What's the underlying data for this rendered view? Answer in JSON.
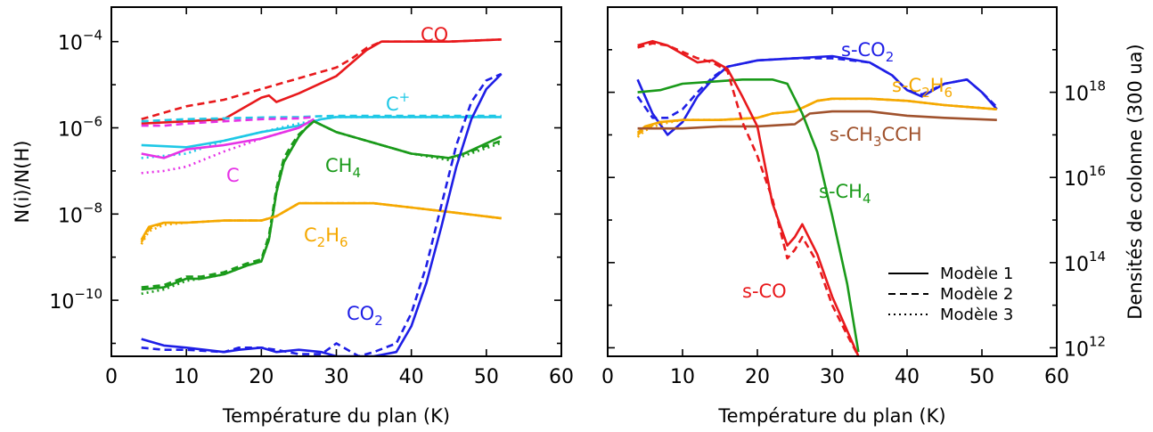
{
  "colors": {
    "CO": "#e8191c",
    "C+": "#1fc8e6",
    "CH4": "#1a9a1a",
    "C": "#e632e6",
    "C2H6": "#f5a800",
    "CO2": "#1e1ee6",
    "CH3CCH": "#a0522d"
  },
  "chart_data": [
    {
      "type": "line",
      "panel": "left",
      "xlabel": "Température du plan (K)",
      "ylabel": "N(i)/N(H)",
      "yscale": "log",
      "xlim": [
        0,
        60
      ],
      "ylim_exp": [
        -11.3,
        -3.2
      ],
      "x_ticks": [
        "0",
        "10",
        "20",
        "30",
        "40",
        "50",
        "60"
      ],
      "y_ticks": [
        {
          "base": "10",
          "exp": "−4",
          "value": -4
        },
        {
          "base": "10",
          "exp": "−6",
          "value": -6
        },
        {
          "base": "10",
          "exp": "−8",
          "value": -8
        },
        {
          "base": "10",
          "exp": "−10",
          "value": -10
        }
      ],
      "series": [
        {
          "name": "CO",
          "color_key": "CO",
          "label": {
            "main": "CO",
            "sub": "",
            "sup": ""
          },
          "x": [
            4,
            10,
            15,
            17,
            20,
            21,
            22,
            25,
            30,
            32,
            34,
            36,
            40,
            45,
            52
          ],
          "y": [
            -5.9,
            -5.85,
            -5.8,
            -5.6,
            -5.3,
            -5.25,
            -5.4,
            -5.2,
            -4.8,
            -4.5,
            -4.2,
            -4.0,
            -4.0,
            -4.0,
            -3.95
          ],
          "y2": [
            -5.8,
            -5.5,
            -5.35,
            -5.25,
            -5.1,
            -5.05,
            -5.0,
            -4.85,
            -4.6,
            -4.4,
            -4.15,
            -4.0,
            -4.0,
            -4.0,
            -3.95
          ],
          "y3": null
        },
        {
          "name": "C⁺",
          "color_key": "C+",
          "label": {
            "main": "C",
            "sub": "",
            "sup": "+"
          },
          "x": [
            4,
            10,
            15,
            20,
            25,
            28,
            30,
            35,
            40,
            45,
            52
          ],
          "y": [
            -6.4,
            -6.45,
            -6.3,
            -6.1,
            -5.95,
            -5.8,
            -5.75,
            -5.75,
            -5.75,
            -5.75,
            -5.75
          ],
          "y2": [
            -5.85,
            -5.8,
            -5.78,
            -5.76,
            -5.75,
            -5.73,
            -5.72,
            -5.72,
            -5.72,
            -5.72,
            -5.72
          ],
          "y3": [
            -6.7,
            -6.6,
            -6.3,
            -6.1,
            -5.9,
            -5.8,
            -5.75,
            -5.75,
            -5.75,
            -5.75,
            -5.75
          ]
        },
        {
          "name": "C",
          "color_key": "C",
          "label": {
            "main": "C",
            "sub": "",
            "sup": ""
          },
          "x": [
            4,
            7,
            10,
            15,
            20,
            25,
            27
          ],
          "y": [
            -6.6,
            -6.7,
            -6.5,
            -6.4,
            -6.25,
            -6.0,
            -5.8
          ],
          "y2": [
            -5.95,
            -5.95,
            -5.9,
            -5.85,
            -5.8,
            -5.78,
            -5.75
          ],
          "y3": [
            -7.05,
            -7.0,
            -6.9,
            -6.55,
            -6.25,
            -6.0,
            -5.8
          ]
        },
        {
          "name": "CH₄",
          "color_key": "CH4",
          "label": {
            "main": "CH",
            "sub": "4",
            "sup": ""
          },
          "x": [
            4,
            7,
            10,
            12,
            15,
            18,
            20,
            21,
            22,
            23,
            24,
            25,
            26,
            27,
            30,
            35,
            40,
            45,
            47,
            52
          ],
          "y": [
            -9.75,
            -9.7,
            -9.5,
            -9.5,
            -9.4,
            -9.2,
            -9.1,
            -8.6,
            -7.5,
            -6.8,
            -6.5,
            -6.2,
            -6.0,
            -5.85,
            -6.1,
            -6.35,
            -6.6,
            -6.7,
            -6.6,
            -6.2
          ],
          "y2": [
            -9.7,
            -9.65,
            -9.45,
            -9.45,
            -9.35,
            -9.15,
            -9.05,
            -8.5,
            -7.4,
            -6.7,
            -6.4,
            -6.15,
            -6.0,
            -5.85,
            -6.1,
            -6.35,
            -6.6,
            -6.7,
            -6.6,
            -6.3
          ],
          "y3": [
            -9.85,
            -9.75,
            -9.55,
            -9.5,
            -9.4,
            -9.2,
            -9.1,
            -8.6,
            -7.5,
            -6.8,
            -6.5,
            -6.2,
            -6.0,
            -5.85,
            -6.1,
            -6.35,
            -6.6,
            -6.75,
            -6.65,
            -6.35
          ]
        },
        {
          "name": "C₂H₆",
          "color_key": "C2H6",
          "label": {
            "main": "C",
            "sub": "2",
            "sup": "",
            "main2": "H",
            "sub2": "6"
          },
          "x": [
            4,
            5,
            7,
            10,
            15,
            20,
            22,
            25,
            30,
            35,
            40,
            45,
            52
          ],
          "y": [
            -8.6,
            -8.3,
            -8.2,
            -8.2,
            -8.15,
            -8.15,
            -8.05,
            -7.75,
            -7.75,
            -7.75,
            -7.85,
            -7.95,
            -8.1
          ],
          "y2": [
            -8.65,
            -8.35,
            -8.2,
            -8.2,
            -8.15,
            -8.15,
            -8.05,
            -7.75,
            -7.75,
            -7.75,
            -7.85,
            -7.95,
            -8.1
          ],
          "y3": [
            -8.7,
            -8.4,
            -8.25,
            -8.2,
            -8.15,
            -8.15,
            -8.05,
            -7.75,
            -7.75,
            -7.75,
            -7.85,
            -7.95,
            -8.1
          ]
        },
        {
          "name": "CO₂",
          "color_key": "CO2",
          "label": {
            "main": "CO",
            "sub": "2",
            "sup": ""
          },
          "x": [
            4,
            7,
            10,
            15,
            17,
            20,
            22,
            25,
            28,
            30,
            33,
            35,
            38,
            40,
            42,
            44,
            46,
            48,
            50,
            52
          ],
          "y": [
            -10.9,
            -11.05,
            -11.1,
            -11.2,
            -11.15,
            -11.1,
            -11.2,
            -11.15,
            -11.2,
            -11.3,
            -11.3,
            -11.3,
            -11.2,
            -10.6,
            -9.6,
            -8.3,
            -6.9,
            -5.8,
            -5.1,
            -4.75
          ],
          "y2": [
            -11.1,
            -11.15,
            -11.15,
            -11.2,
            -11.1,
            -11.1,
            -11.15,
            -11.25,
            -11.25,
            -11.0,
            -11.3,
            -11.2,
            -11.0,
            -10.3,
            -9.2,
            -7.8,
            -6.4,
            -5.4,
            -4.9,
            -4.75
          ],
          "y3": null
        }
      ]
    },
    {
      "type": "line",
      "panel": "right",
      "xlabel": "Température du plan (K)",
      "ylabel": "Densités de colonne (300 ua)",
      "yscale": "log",
      "xlim": [
        0,
        60
      ],
      "ylim_exp": [
        11.8,
        20.0
      ],
      "x_ticks": [
        "0",
        "10",
        "20",
        "30",
        "40",
        "50",
        "60"
      ],
      "y_ticks": [
        {
          "base": "10",
          "exp": "18",
          "value": 18
        },
        {
          "base": "10",
          "exp": "16",
          "value": 16
        },
        {
          "base": "10",
          "exp": "14",
          "value": 14
        },
        {
          "base": "10",
          "exp": "12",
          "value": 12
        }
      ],
      "series": [
        {
          "name": "s-CO₂",
          "color_key": "CO2",
          "label": {
            "main": "s-CO",
            "sub": "2",
            "sup": ""
          },
          "x": [
            4,
            6,
            8,
            10,
            12,
            14,
            16,
            20,
            25,
            30,
            35,
            38,
            40,
            42,
            45,
            48,
            50,
            52
          ],
          "y": [
            18.3,
            17.5,
            17.0,
            17.3,
            17.9,
            18.3,
            18.6,
            18.75,
            18.8,
            18.85,
            18.7,
            18.4,
            18.05,
            17.9,
            18.2,
            18.3,
            18.0,
            17.6
          ],
          "y2": [
            17.9,
            17.4,
            17.4,
            17.6,
            18.0,
            18.35,
            18.6,
            18.75,
            18.8,
            18.8,
            18.7,
            18.4,
            18.05,
            17.95,
            18.2,
            18.3,
            18.0,
            17.65
          ],
          "y3": null
        },
        {
          "name": "s-C₂H₆",
          "color_key": "C2H6",
          "label": {
            "main": "s-C",
            "sub": "2",
            "sup": "",
            "main2": "H",
            "sub2": "6"
          },
          "x": [
            4,
            5,
            7,
            10,
            15,
            20,
            22,
            25,
            28,
            30,
            35,
            40,
            45,
            52
          ],
          "y": [
            17.05,
            17.2,
            17.3,
            17.35,
            17.35,
            17.4,
            17.5,
            17.55,
            17.8,
            17.85,
            17.85,
            17.8,
            17.7,
            17.6
          ],
          "y2": [
            17.0,
            17.15,
            17.3,
            17.35,
            17.35,
            17.4,
            17.5,
            17.55,
            17.8,
            17.85,
            17.85,
            17.8,
            17.7,
            17.6
          ],
          "y3": [
            16.95,
            17.1,
            17.25,
            17.35,
            17.35,
            17.4,
            17.5,
            17.55,
            17.8,
            17.85,
            17.85,
            17.8,
            17.7,
            17.6
          ]
        },
        {
          "name": "s-CH₃CCH",
          "color_key": "CH3CCH",
          "label": {
            "main": "s-CH",
            "sub": "3",
            "sup": "",
            "main2": "CCH",
            "sub2": ""
          },
          "x": [
            4,
            10,
            15,
            20,
            25,
            27,
            30,
            35,
            40,
            45,
            52
          ],
          "y": [
            17.15,
            17.15,
            17.2,
            17.2,
            17.25,
            17.5,
            17.55,
            17.55,
            17.45,
            17.4,
            17.35
          ],
          "y2": null,
          "y3": null
        },
        {
          "name": "s-CH₄",
          "color_key": "CH4",
          "label": {
            "main": "s-CH",
            "sub": "4",
            "sup": ""
          },
          "x": [
            4,
            7,
            10,
            14,
            18,
            22,
            24,
            26,
            28,
            30,
            32,
            33.5
          ],
          "y": [
            18.0,
            18.05,
            18.2,
            18.25,
            18.3,
            18.3,
            18.2,
            17.5,
            16.6,
            15.1,
            13.5,
            11.9
          ],
          "y2": null,
          "y3": null
        },
        {
          "name": "s-CO",
          "color_key": "CO",
          "label": {
            "main": "s-CO",
            "sub": "",
            "sup": ""
          },
          "x": [
            4,
            6,
            8,
            10,
            12,
            14,
            16,
            18,
            20,
            22,
            24,
            25,
            26,
            28,
            30,
            32,
            33.5
          ],
          "y": [
            19.1,
            19.2,
            19.1,
            18.9,
            18.7,
            18.75,
            18.55,
            17.9,
            17.2,
            15.4,
            14.4,
            14.6,
            14.9,
            14.2,
            13.2,
            12.4,
            11.8
          ],
          "y2": [
            19.05,
            19.15,
            19.1,
            18.95,
            18.8,
            18.7,
            18.5,
            17.3,
            16.5,
            15.5,
            14.1,
            14.3,
            14.6,
            14.0,
            13.0,
            12.3,
            11.8
          ],
          "y3": null
        }
      ],
      "legend": {
        "placement": "bottom-right",
        "entries": [
          {
            "label": "Modèle 1",
            "style": "solid"
          },
          {
            "label": "Modèle 2",
            "style": "dashed"
          },
          {
            "label": "Modèle 3",
            "style": "dotted"
          }
        ]
      }
    }
  ]
}
